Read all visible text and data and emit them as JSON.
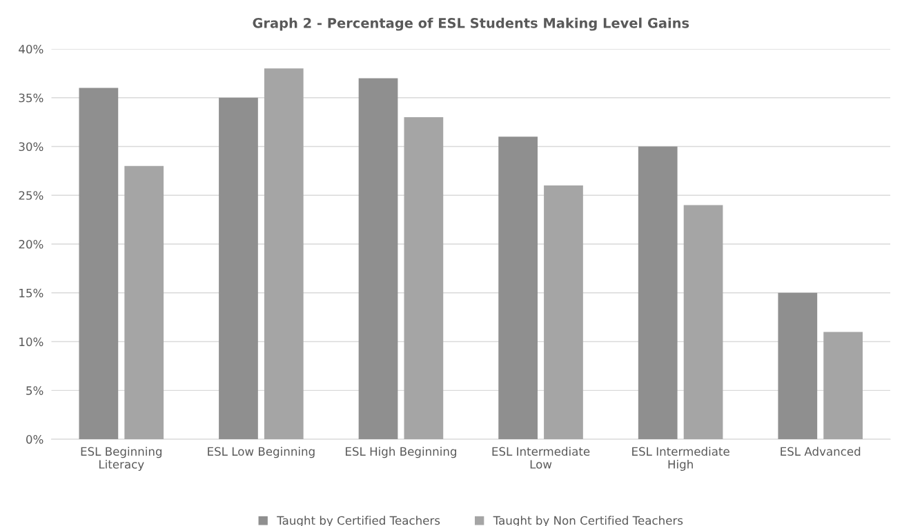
{
  "chart_data": {
    "type": "bar",
    "title": "Graph 2 - Percentage of ESL Students Making Level Gains",
    "categories": [
      "ESL Beginning\nLiteracy",
      "ESL Low Beginning",
      "ESL High Beginning",
      "ESL Intermediate\nLow",
      "ESL Intermediate\nHigh",
      "ESL Advanced"
    ],
    "series": [
      {
        "name": "Taught by Certified Teachers",
        "color": "#8f8f8f",
        "values": [
          36,
          35,
          37,
          31,
          30,
          15
        ]
      },
      {
        "name": "Taught by Non Certified Teachers",
        "color": "#a5a5a5",
        "values": [
          28,
          38,
          33,
          26,
          24,
          11
        ]
      }
    ],
    "ylim": [
      0,
      40
    ],
    "yticks": [
      {
        "value": 0,
        "label": "0%"
      },
      {
        "value": 5,
        "label": "5%"
      },
      {
        "value": 10,
        "label": "10%"
      },
      {
        "value": 15,
        "label": "15%"
      },
      {
        "value": 20,
        "label": "20%"
      },
      {
        "value": 25,
        "label": "25%"
      },
      {
        "value": 30,
        "label": "30%"
      },
      {
        "value": 35,
        "label": "35%"
      },
      {
        "value": 40,
        "label": "40%"
      }
    ],
    "grid": "y",
    "legend": "bottom"
  }
}
